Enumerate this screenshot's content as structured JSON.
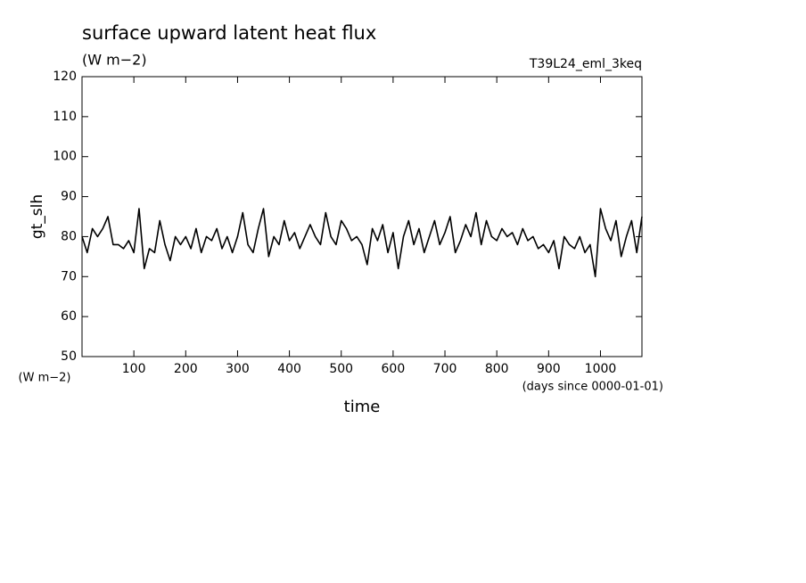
{
  "chart_data": {
    "type": "line",
    "title": "surface upward latent heat flux",
    "units": "(W m−2)",
    "experiment": "T39L24_eml_3keq",
    "ylabel": "gt_slh",
    "y_units": "(W m−2)",
    "xlabel": "time",
    "x_units": "(days since 0000-01-01)",
    "x": [
      0,
      10,
      20,
      30,
      40,
      50,
      60,
      70,
      80,
      90,
      100,
      110,
      120,
      130,
      140,
      150,
      160,
      170,
      180,
      190,
      200,
      210,
      220,
      230,
      240,
      250,
      260,
      270,
      280,
      290,
      300,
      310,
      320,
      330,
      340,
      350,
      360,
      370,
      380,
      390,
      400,
      410,
      420,
      430,
      440,
      450,
      460,
      470,
      480,
      490,
      500,
      510,
      520,
      530,
      540,
      550,
      560,
      570,
      580,
      590,
      600,
      610,
      620,
      630,
      640,
      650,
      660,
      670,
      680,
      690,
      700,
      710,
      720,
      730,
      740,
      750,
      760,
      770,
      780,
      790,
      800,
      810,
      820,
      830,
      840,
      850,
      860,
      870,
      880,
      890,
      900,
      910,
      920,
      930,
      940,
      950,
      960,
      970,
      980,
      990,
      1000,
      1010,
      1020,
      1030,
      1040,
      1050,
      1060,
      1070,
      1080
    ],
    "series": [
      {
        "name": "gt_slh",
        "color": "#000000",
        "values": [
          80,
          76,
          82,
          80,
          82,
          85,
          78,
          78,
          77,
          79,
          76,
          87,
          72,
          77,
          76,
          84,
          78,
          74,
          80,
          78,
          80,
          77,
          82,
          76,
          80,
          79,
          82,
          77,
          80,
          76,
          80,
          86,
          78,
          76,
          82,
          87,
          75,
          80,
          78,
          84,
          79,
          81,
          77,
          80,
          83,
          80,
          78,
          86,
          80,
          78,
          84,
          82,
          79,
          80,
          78,
          73,
          82,
          79,
          83,
          76,
          81,
          72,
          80,
          84,
          78,
          82,
          76,
          80,
          84,
          78,
          81,
          85,
          76,
          79,
          83,
          80,
          86,
          78,
          84,
          80,
          79,
          82,
          80,
          81,
          78,
          82,
          79,
          80,
          77,
          78,
          76,
          79,
          72,
          80,
          78,
          77,
          80,
          76,
          78,
          70,
          87,
          82,
          79,
          84,
          75,
          80,
          84,
          76,
          85
        ]
      }
    ],
    "xlim": [
      0,
      1080
    ],
    "ylim": [
      50,
      120
    ],
    "xticks": [
      100,
      200,
      300,
      400,
      500,
      600,
      700,
      800,
      900,
      1000
    ],
    "yticks": [
      50,
      60,
      70,
      80,
      90,
      100,
      110,
      120
    ]
  }
}
